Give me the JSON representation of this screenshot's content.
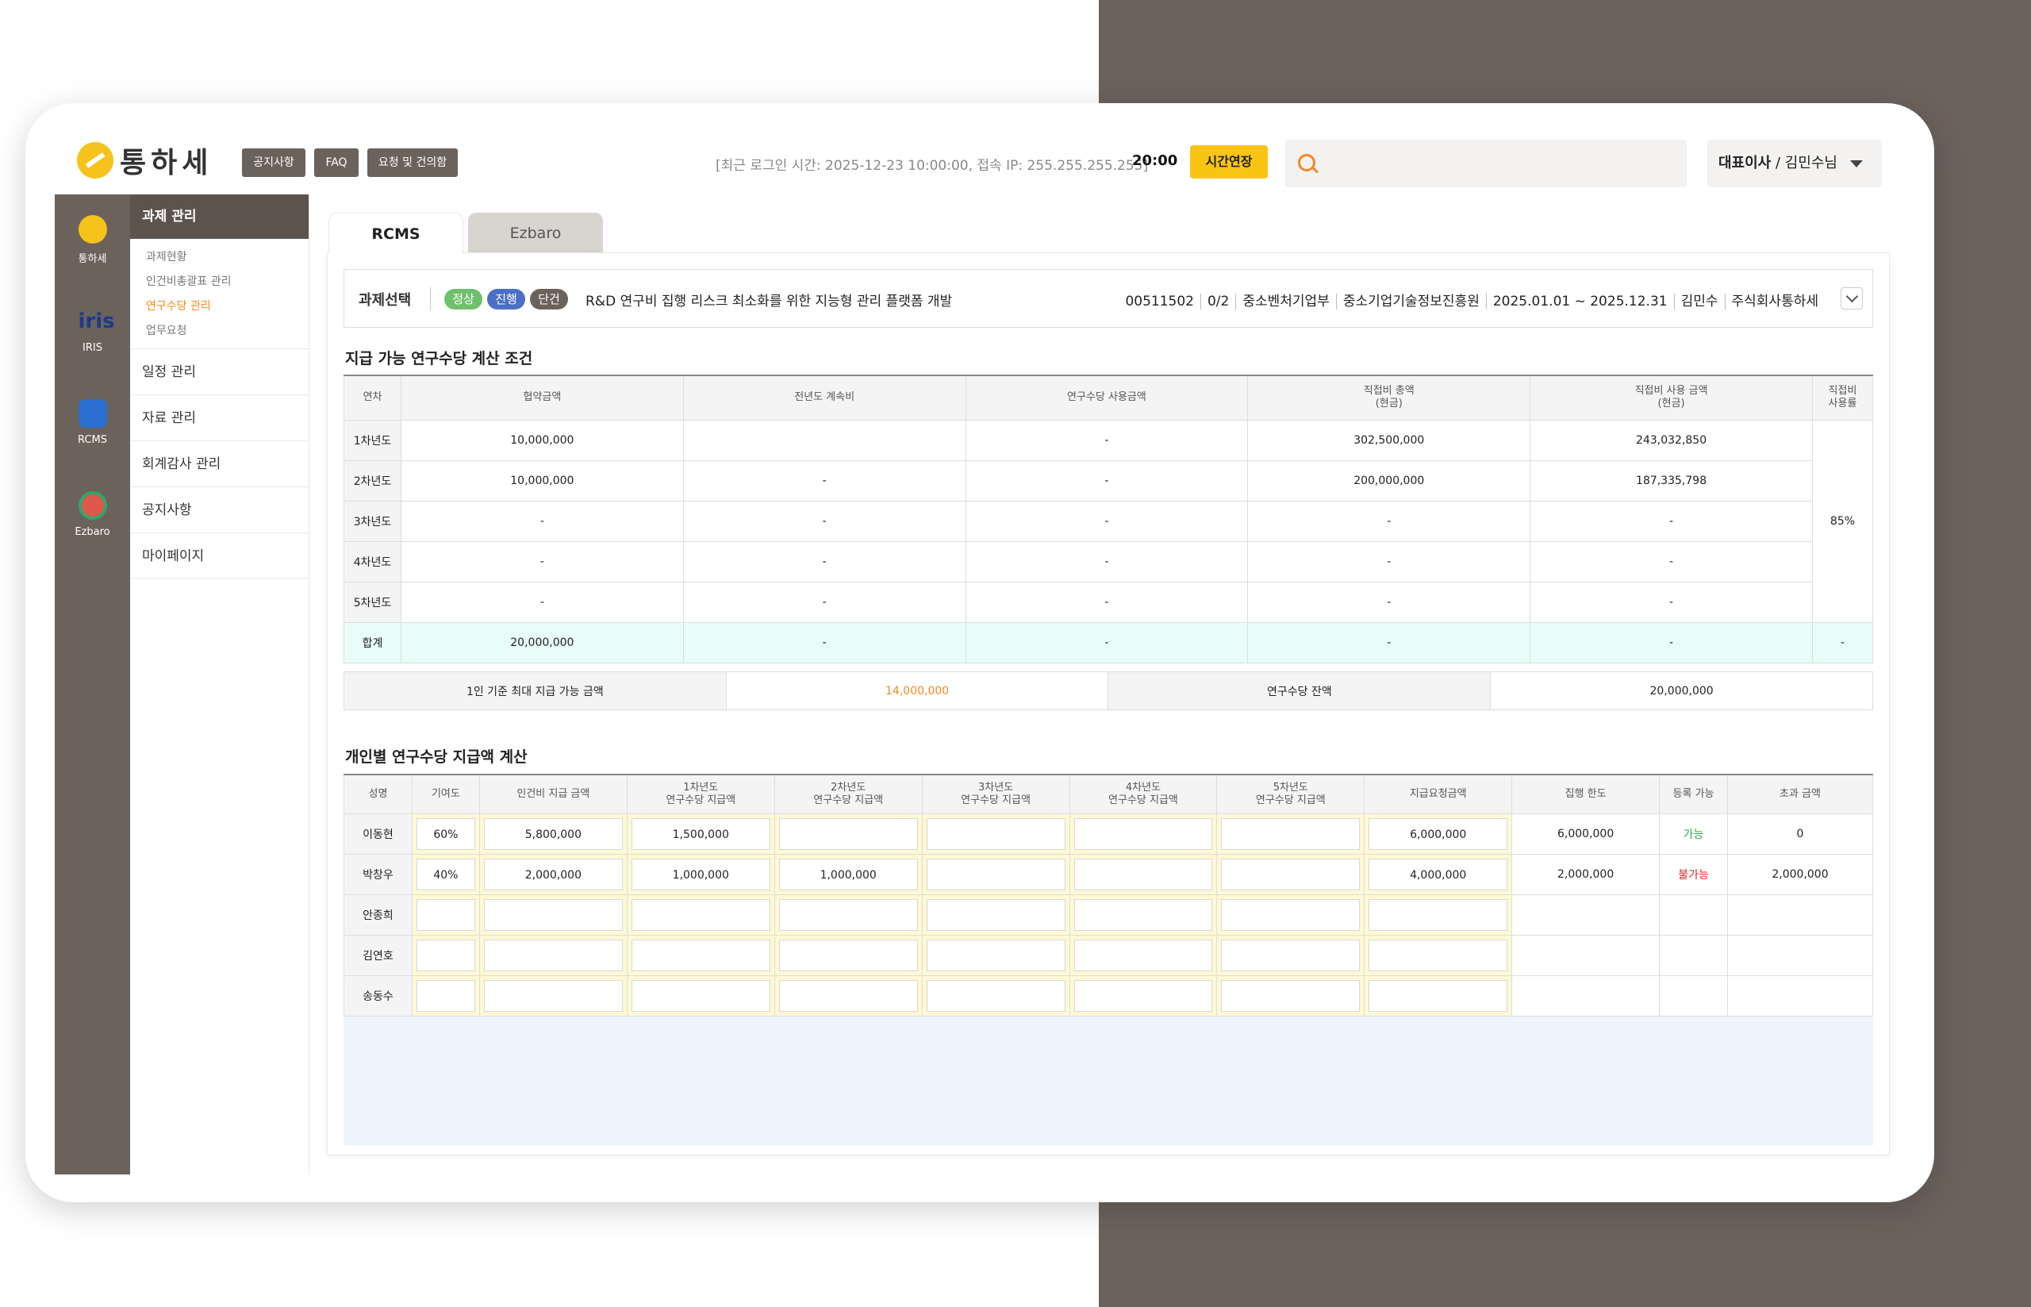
{
  "app": {
    "logo_text": "통하세",
    "brand_color": "#f6c21c",
    "accent_color": "#6b625c"
  },
  "header": {
    "buttons": [
      "공지사항",
      "FAQ",
      "요청 및 건의함"
    ],
    "login_info": "[최근 로그인 시간: 2025-12-23 10:00:00, 접속 IP: 255.255.255.255]",
    "timer": "20:00",
    "extend_label": "시간연장",
    "search_placeholder": "",
    "user_role": "대표이사",
    "user_name": " / 김민수님"
  },
  "rail": [
    {
      "label": "통하세",
      "icon": "tonghase-logo-icon"
    },
    {
      "label": "IRIS",
      "icon": "iris-logo-icon"
    },
    {
      "label": "RCMS",
      "icon": "rcms-logo-icon"
    },
    {
      "label": "Ezbaro",
      "icon": "ezbaro-logo-icon"
    }
  ],
  "sidebar": {
    "section": "과제 관리",
    "sub_items": [
      {
        "label": "과제현황",
        "active": false
      },
      {
        "label": "인건비총괄표 관리",
        "active": false
      },
      {
        "label": "연구수당 관리",
        "active": true
      },
      {
        "label": "업무요청",
        "active": false
      }
    ],
    "main_items": [
      "일정 관리",
      "자료 관리",
      "회계감사 관리",
      "공지사항",
      "마이페이지"
    ]
  },
  "tabs": [
    "RCMS",
    "Ezbaro"
  ],
  "project": {
    "label": "과제선택",
    "badges": [
      {
        "text": "정상",
        "color": "#6fc06a"
      },
      {
        "text": "진행",
        "color": "#4a6fc4"
      },
      {
        "text": "단건",
        "color": "#6b625c"
      }
    ],
    "title": "R&D 연구비 집행 리스크 최소화를 위한 지능형 관리 플랫폼 개발",
    "meta": [
      "00511502",
      "0/2",
      "중소벤처기업부",
      "중소기업기술정보진흥원",
      "2025.01.01 ~ 2025.12.31",
      "김민수",
      "주식회사통하세"
    ]
  },
  "section1": {
    "title": "지급 가능 연구수당 계산 조건",
    "headers": [
      "연차",
      "협약금액",
      "전년도 계속비",
      "연구수당 사용금액",
      "직접비 총액\n(현금)",
      "직접비 사용 금액\n(현금)",
      "직접비\n사용률"
    ],
    "rows": [
      [
        "1차년도",
        "10,000,000",
        "",
        "-",
        "302,500,000",
        "243,032,850"
      ],
      [
        "2차년도",
        "10,000,000",
        "-",
        "-",
        "200,000,000",
        "187,335,798"
      ],
      [
        "3차년도",
        "-",
        "-",
        "-",
        "-",
        "-"
      ],
      [
        "4차년도",
        "-",
        "-",
        "-",
        "-",
        "-"
      ],
      [
        "5차년도",
        "-",
        "-",
        "-",
        "-",
        "-"
      ]
    ],
    "usage_rate": "85%",
    "sum_row": [
      "합계",
      "20,000,000",
      "-",
      "-",
      "-",
      "-",
      "-"
    ]
  },
  "summary": {
    "max_label": "1인 기준 최대 지급 가능 금액",
    "max_value": "14,000,000",
    "balance_label": "연구수당 잔액",
    "balance_value": "20,000,000",
    "highlight_color": "#f08a1d"
  },
  "section2": {
    "title": "개인별 연구수당 지급액 계산",
    "headers": [
      "성명",
      "기여도",
      "인건비 지급 금액",
      "1차년도\n연구수당 지급액",
      "2차년도\n연구수당 지급액",
      "3차년도\n연구수당 지급액",
      "4차년도\n연구수당 지급액",
      "5차년도\n연구수당 지급액",
      "지급요청금액",
      "집행 한도",
      "등록 가능",
      "초과 금액"
    ],
    "rows": [
      {
        "name": "이동현",
        "contribution": "60%",
        "labor": "5,800,000",
        "y1": "1,500,000",
        "y2": "",
        "y3": "",
        "y4": "",
        "y5": "",
        "request": "6,000,000",
        "limit": "6,000,000",
        "status": "가능",
        "status_ok": true,
        "excess": "0"
      },
      {
        "name": "박창우",
        "contribution": "40%",
        "labor": "2,000,000",
        "y1": "1,000,000",
        "y2": "1,000,000",
        "y3": "",
        "y4": "",
        "y5": "",
        "request": "4,000,000",
        "limit": "2,000,000",
        "status": "불가능",
        "status_ok": false,
        "excess": "2,000,000"
      },
      {
        "name": "안종희",
        "contribution": "",
        "labor": "",
        "y1": "",
        "y2": "",
        "y3": "",
        "y4": "",
        "y5": "",
        "request": "",
        "limit": "",
        "status": "",
        "status_ok": true,
        "excess": ""
      },
      {
        "name": "김연호",
        "contribution": "",
        "labor": "",
        "y1": "",
        "y2": "",
        "y3": "",
        "y4": "",
        "y5": "",
        "request": "",
        "limit": "",
        "status": "",
        "status_ok": true,
        "excess": ""
      },
      {
        "name": "송동수",
        "contribution": "",
        "labor": "",
        "y1": "",
        "y2": "",
        "y3": "",
        "y4": "",
        "y5": "",
        "request": "",
        "limit": "",
        "status": "",
        "status_ok": true,
        "excess": ""
      }
    ]
  }
}
